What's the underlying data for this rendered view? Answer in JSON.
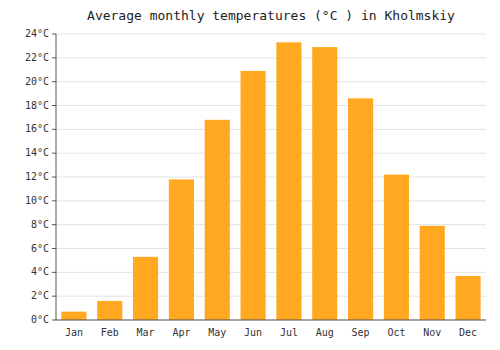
{
  "chart_data": {
    "type": "bar",
    "title": "Average monthly temperatures (°C ) in Kholmskiy",
    "categories": [
      "Jan",
      "Feb",
      "Mar",
      "Apr",
      "May",
      "Jun",
      "Jul",
      "Aug",
      "Sep",
      "Oct",
      "Nov",
      "Dec"
    ],
    "values": [
      0.7,
      1.6,
      5.3,
      11.8,
      16.8,
      20.9,
      23.3,
      22.9,
      18.6,
      12.2,
      7.9,
      3.7
    ],
    "color": "#FFA820",
    "ylim": [
      0,
      24
    ],
    "yticks": [
      {
        "value": 0,
        "label": "0°C"
      },
      {
        "value": 2,
        "label": "2°C"
      },
      {
        "value": 4,
        "label": "4°C"
      },
      {
        "value": 6,
        "label": "6°C"
      },
      {
        "value": 8,
        "label": "8°C"
      },
      {
        "value": 10,
        "label": "10°C"
      },
      {
        "value": 12,
        "label": "12°C"
      },
      {
        "value": 14,
        "label": "14°C"
      },
      {
        "value": 16,
        "label": "16°C"
      },
      {
        "value": 18,
        "label": "18°C"
      },
      {
        "value": 20,
        "label": "20°C"
      },
      {
        "value": 22,
        "label": "22°C"
      },
      {
        "value": 24,
        "label": "24°C"
      }
    ],
    "grid": true
  }
}
